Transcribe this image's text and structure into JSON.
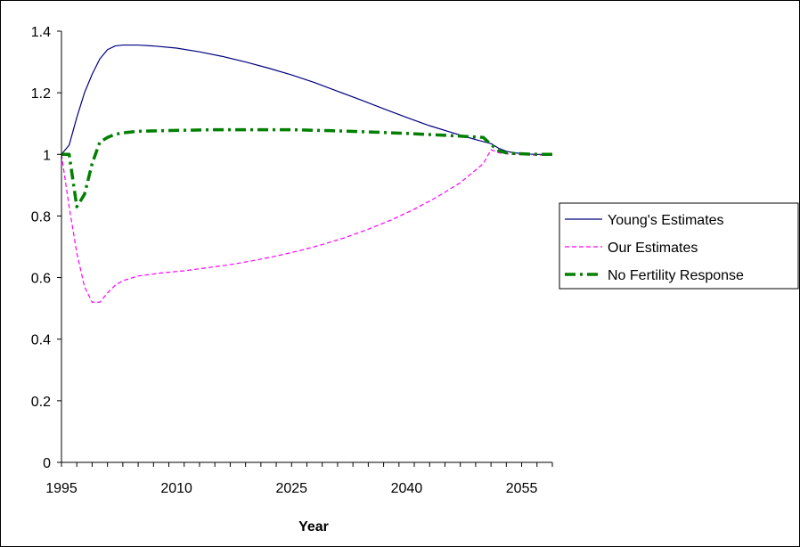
{
  "chart_data": {
    "type": "line",
    "title": "",
    "xlabel": "Year",
    "ylabel": "",
    "xlim": [
      1995,
      2059
    ],
    "ylim": [
      0,
      1.4
    ],
    "grid": false,
    "legend_position": "right",
    "x_tick_labels": [
      {
        "value": 1995,
        "label": "1995"
      },
      {
        "value": 2010,
        "label": "2010"
      },
      {
        "value": 2025,
        "label": "2025"
      },
      {
        "value": 2040,
        "label": "2040"
      },
      {
        "value": 2055,
        "label": "2055"
      }
    ],
    "y_tick_labels": [
      {
        "value": 0,
        "label": "0"
      },
      {
        "value": 0.2,
        "label": "0.2"
      },
      {
        "value": 0.4,
        "label": "0.4"
      },
      {
        "value": 0.6,
        "label": "0.6"
      },
      {
        "value": 0.8,
        "label": "0.8"
      },
      {
        "value": 1,
        "label": "1"
      },
      {
        "value": 1.2,
        "label": "1.2"
      },
      {
        "value": 1.4,
        "label": "1.4"
      }
    ],
    "series": [
      {
        "name": "Young's Estimates",
        "color": "#000080",
        "style": "solid",
        "x": [
          1995,
          1996,
          1997,
          1998,
          1999,
          2000,
          2001,
          2002,
          2003,
          2005,
          2007,
          2010,
          2013,
          2016,
          2019,
          2022,
          2025,
          2028,
          2031,
          2034,
          2037,
          2040,
          2043,
          2046,
          2049,
          2051,
          2052,
          2053,
          2054,
          2055,
          2056,
          2057,
          2058,
          2059
        ],
        "values": [
          1.0,
          1.03,
          1.12,
          1.2,
          1.26,
          1.31,
          1.34,
          1.352,
          1.355,
          1.355,
          1.352,
          1.345,
          1.333,
          1.318,
          1.3,
          1.28,
          1.258,
          1.233,
          1.205,
          1.177,
          1.148,
          1.12,
          1.093,
          1.07,
          1.048,
          1.035,
          1.02,
          1.01,
          1.005,
          1.003,
          1.001,
          1.0,
          1.0,
          1.0
        ]
      },
      {
        "name": "Our Estimates",
        "color": "#FF00FF",
        "style": "dashed",
        "x": [
          1995,
          1996,
          1997,
          1998,
          1999,
          2000,
          2001,
          2002,
          2003,
          2005,
          2008,
          2011,
          2014,
          2017,
          2020,
          2023,
          2026,
          2029,
          2032,
          2035,
          2038,
          2041,
          2044,
          2047,
          2050,
          2051,
          2052,
          2053,
          2054,
          2055,
          2056,
          2057,
          2058,
          2059
        ],
        "values": [
          1.0,
          0.83,
          0.68,
          0.57,
          0.52,
          0.52,
          0.55,
          0.575,
          0.59,
          0.605,
          0.615,
          0.622,
          0.632,
          0.642,
          0.655,
          0.67,
          0.687,
          0.707,
          0.73,
          0.757,
          0.787,
          0.822,
          0.862,
          0.908,
          0.97,
          1.015,
          1.005,
          1.002,
          1.0,
          1.0,
          0.998,
          0.998,
          0.998,
          0.998
        ]
      },
      {
        "name": "No Fertility Response",
        "color": "#008000",
        "style": "dashdot",
        "x": [
          1995,
          1996,
          1997,
          1998,
          1999,
          2000,
          2001,
          2002,
          2003,
          2005,
          2010,
          2015,
          2020,
          2025,
          2030,
          2035,
          2040,
          2045,
          2050,
          2051,
          2052,
          2053,
          2054,
          2055,
          2056,
          2057,
          2058,
          2059
        ],
        "values": [
          1.0,
          1.0,
          0.83,
          0.87,
          0.97,
          1.04,
          1.055,
          1.065,
          1.07,
          1.075,
          1.078,
          1.08,
          1.08,
          1.08,
          1.077,
          1.073,
          1.068,
          1.062,
          1.055,
          1.032,
          1.012,
          1.005,
          1.003,
          1.002,
          1.001,
          1.0,
          1.0,
          1.0
        ]
      }
    ]
  }
}
